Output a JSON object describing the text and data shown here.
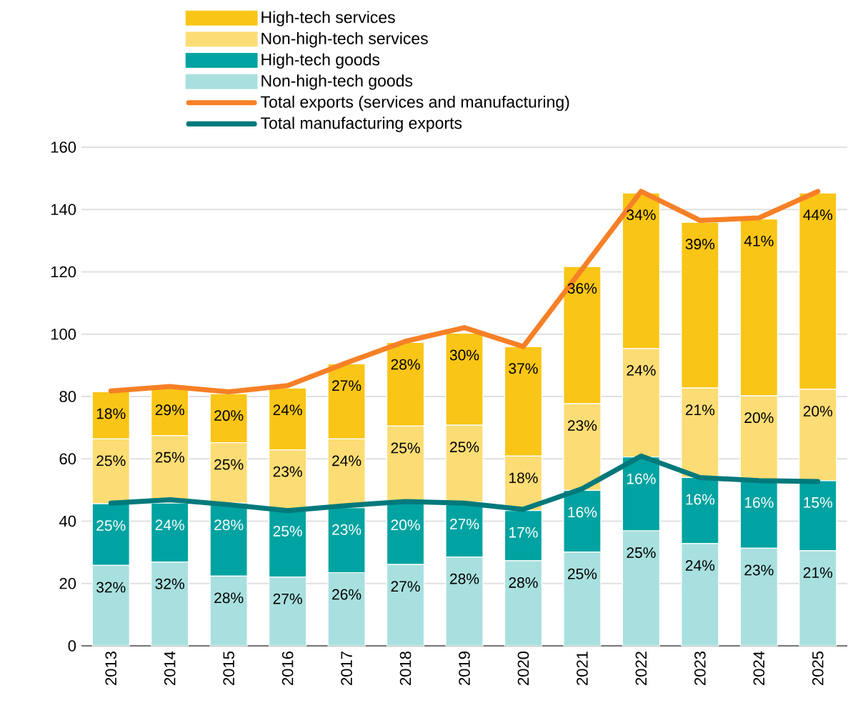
{
  "chart_data": {
    "type": "bar",
    "stacked": true,
    "categories": [
      "2013",
      "2014",
      "2015",
      "2016",
      "2017",
      "2018",
      "2019",
      "2020",
      "2021",
      "2022",
      "2023",
      "2024",
      "2025"
    ],
    "series": [
      {
        "name": "Non-high-tech goods",
        "color": "#a8e0df",
        "values": [
          25.8,
          26.9,
          22.4,
          22.1,
          23.5,
          26.1,
          28.5,
          27.3,
          30.1,
          36.9,
          32.8,
          31.3,
          30.5
        ]
      },
      {
        "name": "High-tech goods",
        "color": "#00a3a1",
        "values": [
          19.8,
          18.9,
          23.4,
          21.7,
          20.8,
          19.7,
          17.6,
          16.1,
          19.8,
          23.7,
          21.2,
          21.7,
          22.5
        ]
      },
      {
        "name": "Non-high-tech services",
        "color": "#fcdc74",
        "values": [
          20.8,
          21.7,
          19.4,
          19.1,
          22.1,
          24.7,
          24.7,
          17.5,
          27.8,
          34.8,
          28.7,
          27.2,
          29.3
        ]
      },
      {
        "name": "High-tech services",
        "color": "#f9c516",
        "values": [
          15.1,
          15.2,
          15.7,
          19.8,
          24.1,
          26.8,
          29.5,
          35.1,
          44.0,
          49.9,
          53.2,
          56.7,
          63.0
        ]
      },
      {
        "name": "Total exports (services and manufacturing)",
        "type": "line",
        "color": "#f68026",
        "values": [
          81.8,
          83.2,
          81.5,
          83.5,
          90.8,
          97.7,
          102.1,
          96.0,
          120.9,
          145.8,
          136.5,
          137.3,
          145.8
        ]
      },
      {
        "name": "Total manufacturing exports",
        "type": "line",
        "color": "#00797b",
        "values": [
          45.8,
          46.9,
          45.3,
          43.4,
          45.0,
          46.3,
          45.8,
          43.8,
          50.4,
          60.9,
          54.0,
          53.0,
          52.7
        ]
      }
    ],
    "annotations": [
      {
        "text": "32%",
        "x": "2013",
        "y": 25.8
      },
      {
        "text": "32%",
        "x": "2014",
        "y": 26.9
      },
      {
        "text": "28%",
        "x": "2015",
        "y": 22.4
      },
      {
        "text": "27%",
        "x": "2016",
        "y": 22.1
      },
      {
        "text": "26%",
        "x": "2017",
        "y": 23.5
      },
      {
        "text": "27%",
        "x": "2018",
        "y": 26.1
      },
      {
        "text": "28%",
        "x": "2019",
        "y": 28.5
      },
      {
        "text": "28%",
        "x": "2020",
        "y": 27.3
      },
      {
        "text": "25%",
        "x": "2021",
        "y": 30.1
      },
      {
        "text": "25%",
        "x": "2022",
        "y": 36.9
      },
      {
        "text": "24%",
        "x": "2023",
        "y": 32.8
      },
      {
        "text": "23%",
        "x": "2024",
        "y": 31.3
      },
      {
        "text": "21%",
        "x": "2025",
        "y": 30.5
      },
      {
        "text": "25%",
        "x": "2013",
        "y": 45.6
      },
      {
        "text": "24%",
        "x": "2014",
        "y": 45.8
      },
      {
        "text": "28%",
        "x": "2015",
        "y": 45.8
      },
      {
        "text": "25%",
        "x": "2016",
        "y": 43.8
      },
      {
        "text": "23%",
        "x": "2017",
        "y": 44.3
      },
      {
        "text": "20%",
        "x": "2018",
        "y": 45.8
      },
      {
        "text": "27%",
        "x": "2019",
        "y": 46.1
      },
      {
        "text": "17%",
        "x": "2020",
        "y": 43.4
      },
      {
        "text": "16%",
        "x": "2021",
        "y": 49.9
      },
      {
        "text": "16%",
        "x": "2022",
        "y": 60.6
      },
      {
        "text": "16%",
        "x": "2023",
        "y": 54.0
      },
      {
        "text": "16%",
        "x": "2024",
        "y": 53.0
      },
      {
        "text": "15%",
        "x": "2025",
        "y": 53.0
      },
      {
        "text": "25%",
        "x": "2013",
        "y": 66.4
      },
      {
        "text": "25%",
        "x": "2014",
        "y": 67.5
      },
      {
        "text": "25%",
        "x": "2015",
        "y": 65.2
      },
      {
        "text": "23%",
        "x": "2016",
        "y": 62.9
      },
      {
        "text": "24%",
        "x": "2017",
        "y": 66.4
      },
      {
        "text": "25%",
        "x": "2018",
        "y": 70.5
      },
      {
        "text": "25%",
        "x": "2019",
        "y": 70.8
      },
      {
        "text": "18%",
        "x": "2020",
        "y": 60.9
      },
      {
        "text": "23%",
        "x": "2021",
        "y": 77.7
      },
      {
        "text": "24%",
        "x": "2022",
        "y": 95.4
      },
      {
        "text": "21%",
        "x": "2023",
        "y": 82.7
      },
      {
        "text": "20%",
        "x": "2024",
        "y": 80.2
      },
      {
        "text": "20%",
        "x": "2025",
        "y": 82.3
      },
      {
        "text": "18%",
        "x": "2013",
        "y": 81.5
      },
      {
        "text": "29%",
        "x": "2014",
        "y": 82.7
      },
      {
        "text": "20%",
        "x": "2015",
        "y": 80.9
      },
      {
        "text": "24%",
        "x": "2016",
        "y": 82.7
      },
      {
        "text": "27%",
        "x": "2017",
        "y": 90.5
      },
      {
        "text": "28%",
        "x": "2018",
        "y": 97.3
      },
      {
        "text": "30%",
        "x": "2019",
        "y": 100.3
      },
      {
        "text": "37%",
        "x": "2020",
        "y": 96.0
      },
      {
        "text": "36%",
        "x": "2021",
        "y": 121.7
      },
      {
        "text": "34%",
        "x": "2022",
        "y": 145.3
      },
      {
        "text": "39%",
        "x": "2023",
        "y": 135.9
      },
      {
        "text": "41%",
        "x": "2024",
        "y": 136.9
      },
      {
        "text": "44%",
        "x": "2025",
        "y": 145.3
      }
    ],
    "ylim": [
      0,
      160
    ],
    "yticks": [
      0,
      20,
      40,
      60,
      80,
      100,
      120,
      140,
      160
    ],
    "grid": "y",
    "legend": "top"
  }
}
